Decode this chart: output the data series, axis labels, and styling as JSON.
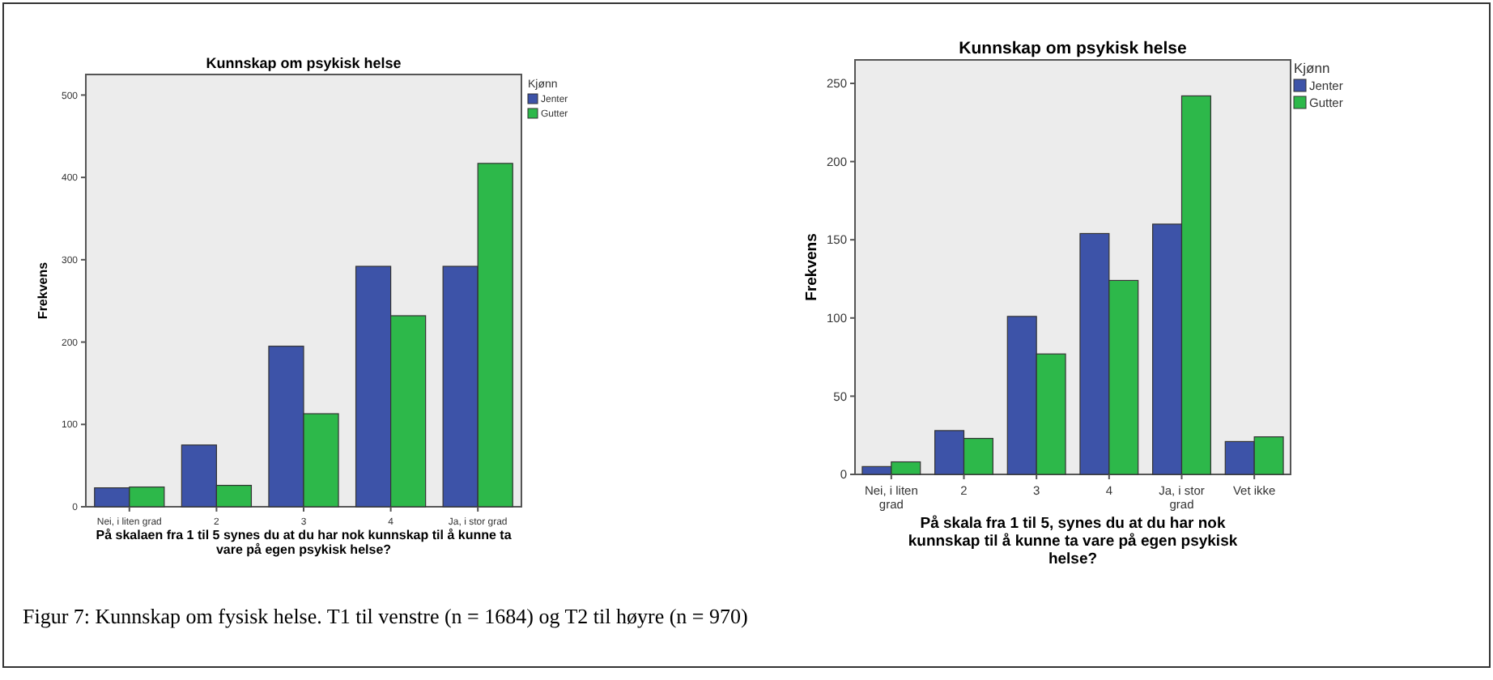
{
  "chart_data": [
    {
      "type": "bar",
      "title": "Kunnskap om psykisk helse",
      "xlabel": "På skalaen fra 1 til 5 synes du at du har nok kunnskap til å kunne ta vare på egen psykisk helse?",
      "ylabel": "Frekvens",
      "legend_title": "Kjønn",
      "legend": "right",
      "grid": false,
      "categories": [
        "Nei, i liten grad",
        "2",
        "3",
        "4",
        "Ja, i stor grad"
      ],
      "ylim": [
        0,
        525
      ],
      "yticks": [
        0,
        100,
        200,
        300,
        400,
        500
      ],
      "series": [
        {
          "name": "Jenter",
          "color": "#3d53a8",
          "values": [
            23,
            75,
            195,
            292,
            292
          ]
        },
        {
          "name": "Gutter",
          "color": "#2db84a",
          "values": [
            24,
            26,
            113,
            232,
            417
          ]
        }
      ],
      "annotations": [
        "Figur 7: Kunnskap om fysisk helse. T1 til venstre (n = 1684) og T2 til høyre (n = 970)"
      ]
    },
    {
      "type": "bar",
      "title": "Kunnskap om psykisk helse",
      "xlabel": "På skala fra 1 til 5, synes du at du har nok kunnskap til å kunne ta vare på egen psykisk helse?",
      "ylabel": "Frekvens",
      "legend_title": "Kjønn",
      "legend": "right",
      "grid": false,
      "categories": [
        "Nei, i liten grad",
        "2",
        "3",
        "4",
        "Ja, i stor grad",
        "Vet ikke"
      ],
      "ylim": [
        0,
        265
      ],
      "yticks": [
        0,
        50,
        100,
        150,
        200,
        250
      ],
      "series": [
        {
          "name": "Jenter",
          "color": "#3d53a8",
          "values": [
            5,
            28,
            101,
            154,
            160,
            21
          ]
        },
        {
          "name": "Gutter",
          "color": "#2db84a",
          "values": [
            8,
            23,
            77,
            124,
            242,
            24
          ]
        }
      ]
    }
  ]
}
